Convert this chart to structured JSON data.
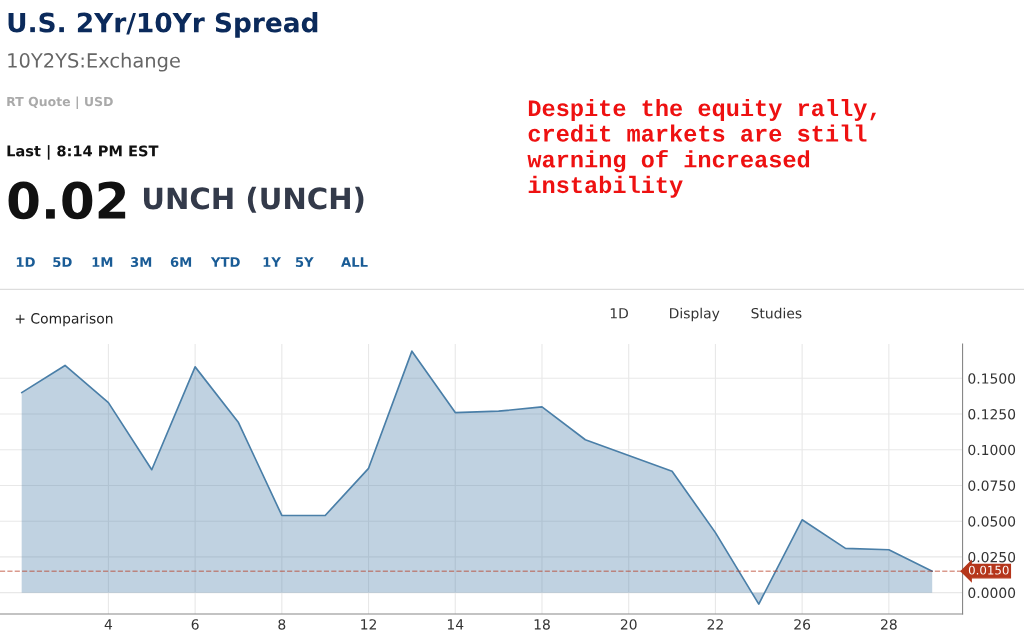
{
  "chart_data": {
    "type": "area",
    "title": "U.S. 2Yr/10Yr Spread",
    "subtitle": "10Y2YS:Exchange",
    "annotations": [
      "RT Quote | USD",
      "Last | 8:14 PM EST",
      "0.02",
      "UNCH (UNCH)",
      "Despite the equity rally,\ncredit markets are still\nwarning of increased\ninstability",
      "1D",
      "5D",
      "1M",
      "3M",
      "6M",
      "YTD",
      "1Y",
      "5Y",
      "ALL",
      "+ Comparison",
      "1D",
      "Display",
      "Studies"
    ],
    "categories": [
      null,
      null,
      "4",
      null,
      "6",
      null,
      "8",
      null,
      "12",
      null,
      "14",
      null,
      "18",
      null,
      "20",
      null,
      "22",
      null,
      "26",
      null,
      "28",
      null
    ],
    "series": [
      {
        "color": "#4a7fa8",
        "values": [
          0.14,
          0.159,
          0.133,
          0.086,
          0.158,
          0.119,
          0.054,
          0.054,
          0.087,
          0.169,
          0.126,
          0.127,
          0.13,
          0.107,
          0.096,
          0.085,
          0.042,
          -0.008,
          0.051,
          0.031,
          0.03,
          0.015
        ]
      }
    ],
    "ylim": [
      -0.015,
      0.174
    ],
    "yticks": [
      {
        "value": 0.0,
        "label": "0.0000"
      },
      {
        "value": 0.025,
        "label": "0.0250"
      },
      {
        "value": 0.05,
        "label": "0.0500"
      },
      {
        "value": 0.075,
        "label": "0.0750"
      },
      {
        "value": 0.1,
        "label": "0.1000"
      },
      {
        "value": 0.125,
        "label": "0.1250"
      },
      {
        "value": 0.15,
        "label": "0.1500"
      }
    ],
    "ref_lines": [
      {
        "axis": "y",
        "value": 0.015,
        "label": "0.0150",
        "color": "#b5361b",
        "line_style": "dashed"
      }
    ],
    "grid": true
  }
}
